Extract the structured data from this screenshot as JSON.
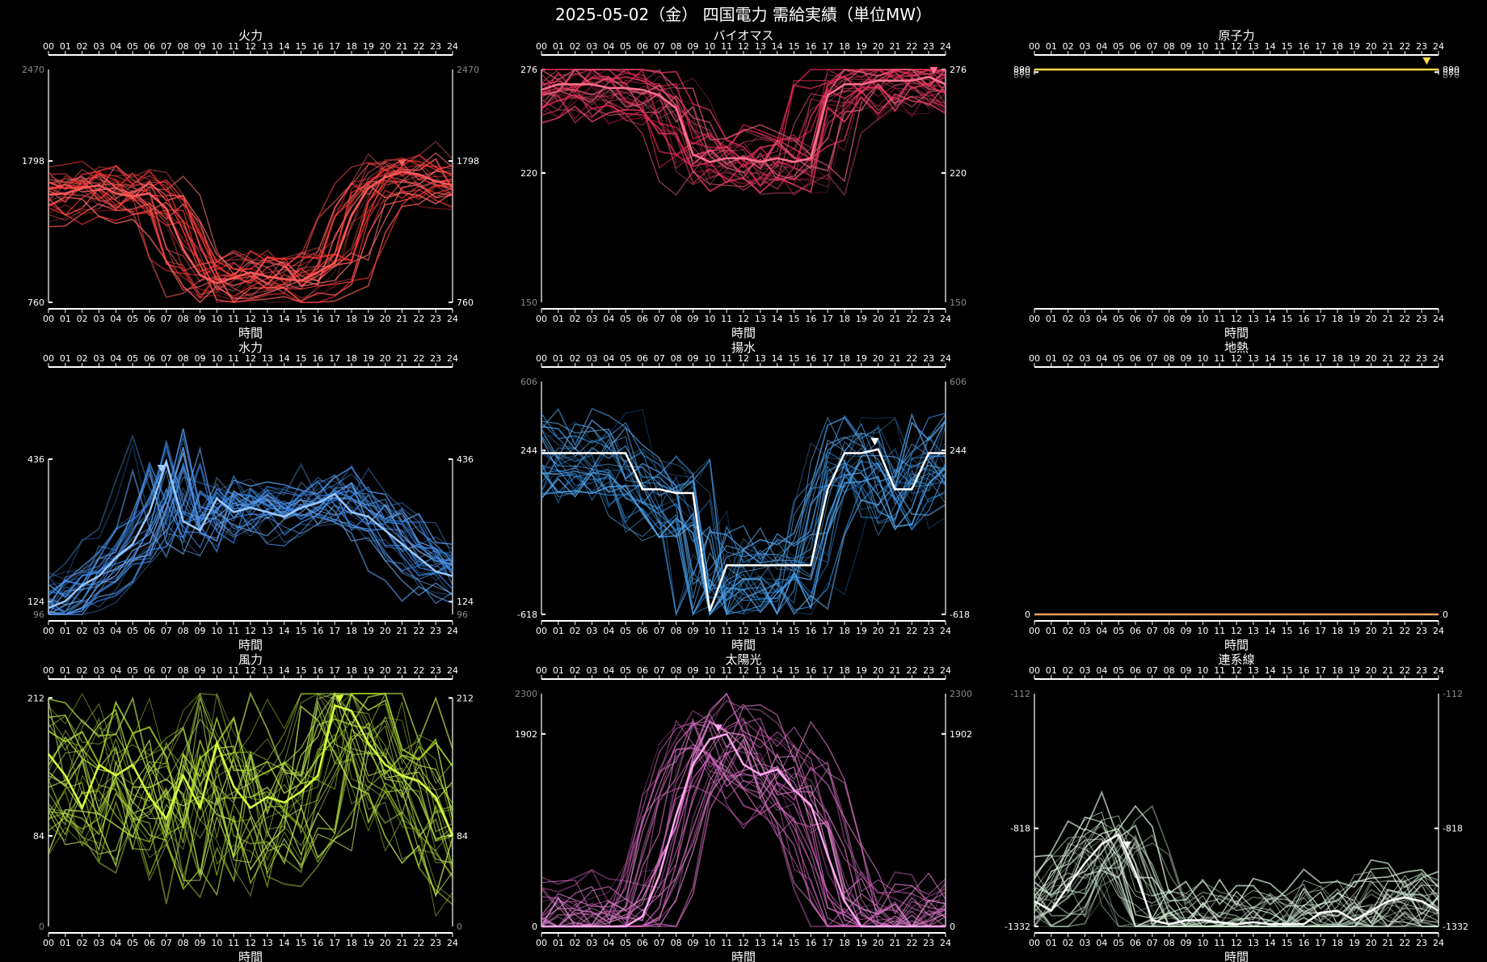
{
  "page": {
    "title": "2025-05-02（金） 四国電力 需給実績（単位MW）",
    "background": "#000000",
    "hours": [
      "00",
      "01",
      "02",
      "03",
      "04",
      "05",
      "06",
      "07",
      "08",
      "09",
      "10",
      "11",
      "12",
      "13",
      "14",
      "15",
      "16",
      "17",
      "18",
      "19",
      "20",
      "21",
      "22",
      "23",
      "24"
    ],
    "xlabel": "時間"
  },
  "chart_data": [
    {
      "type": "line",
      "title": "火力",
      "xlabel": "時間",
      "color": "#ff3030",
      "highlight": "#ff5a5a",
      "ylim": [
        760,
        2470
      ],
      "scale_max": 2470,
      "ticks_major": [
        760,
        1798
      ],
      "tick_minor": 2470,
      "x_hours": [
        0,
        1,
        2,
        3,
        4,
        5,
        6,
        7,
        8,
        9,
        10,
        11,
        12,
        13,
        14,
        15,
        16,
        17,
        18,
        19,
        20,
        21,
        22,
        23,
        24
      ],
      "today": [
        1550,
        1560,
        1600,
        1620,
        1560,
        1540,
        1560,
        1450,
        1150,
        960,
        900,
        940,
        980,
        950,
        930,
        920,
        980,
        1050,
        1400,
        1600,
        1680,
        1720,
        1700,
        1650,
        1620
      ],
      "marker_hour": 21,
      "history_count": 30,
      "history_spread": 0.18,
      "history_seed": 11
    },
    {
      "type": "line",
      "title": "バイオマス",
      "xlabel": "時間",
      "color": "#e8204f",
      "highlight": "#ff7090",
      "ylim": [
        150,
        276
      ],
      "scale_max": 276,
      "ticks_major": [
        220,
        276
      ],
      "tick_minor": 150,
      "x_hours": [
        0,
        1,
        2,
        3,
        4,
        5,
        6,
        7,
        8,
        9,
        10,
        11,
        12,
        13,
        14,
        15,
        16,
        17,
        18,
        19,
        20,
        21,
        22,
        23,
        24
      ],
      "today": [
        265,
        268,
        268,
        268,
        266,
        266,
        265,
        262,
        255,
        230,
        226,
        228,
        228,
        226,
        228,
        226,
        228,
        262,
        268,
        268,
        270,
        270,
        270,
        272,
        268
      ],
      "marker_hour": 23.3,
      "history_count": 30,
      "history_spread": 0.22,
      "history_seed": 23
    },
    {
      "type": "line",
      "title": "原子力",
      "xlabel": "時間",
      "color": "#f0c020",
      "highlight": "#ffd84a",
      "ylim": [
        0,
        890
      ],
      "scale_max": 890,
      "ticks_major": [
        880,
        890
      ],
      "tick_minor": 870,
      "x_hours": [
        0,
        1,
        2,
        3,
        4,
        5,
        6,
        7,
        8,
        9,
        10,
        11,
        12,
        13,
        14,
        15,
        16,
        17,
        18,
        19,
        20,
        21,
        22,
        23,
        24
      ],
      "today": [
        890,
        890,
        890,
        890,
        890,
        890,
        890,
        890,
        890,
        890,
        890,
        890,
        890,
        890,
        890,
        890,
        890,
        890,
        890,
        890,
        890,
        890,
        890,
        890,
        890
      ],
      "marker_hour": 23.3,
      "history_count": 0,
      "history_spread": 0,
      "history_seed": 5
    },
    {
      "type": "line",
      "title": "水力",
      "xlabel": "時間",
      "color": "#2a80e8",
      "highlight": "#9ac8ff",
      "ylim": [
        96,
        606
      ],
      "scale_max": 606,
      "ticks_major": [
        124,
        436
      ],
      "tick_minor": 96,
      "x_hours": [
        0,
        1,
        2,
        3,
        4,
        5,
        6,
        7,
        8,
        9,
        10,
        11,
        12,
        13,
        14,
        15,
        16,
        17,
        18,
        19,
        20,
        21,
        22,
        23,
        24
      ],
      "today": [
        110,
        125,
        160,
        180,
        220,
        250,
        320,
        430,
        300,
        280,
        350,
        320,
        330,
        320,
        310,
        330,
        340,
        360,
        320,
        310,
        280,
        250,
        220,
        190,
        180
      ],
      "marker_hour": 6.7,
      "history_count": 30,
      "history_spread": 0.2,
      "history_seed": 37
    },
    {
      "type": "line",
      "title": "揚水",
      "xlabel": "時間",
      "color": "#1e88e5",
      "highlight": "#ffffff",
      "ylim": [
        -618,
        606
      ],
      "scale_max": 606,
      "ticks_major": [
        -618,
        244
      ],
      "tick_minor": 606,
      "x_hours": [
        0,
        1,
        2,
        3,
        4,
        5,
        6,
        7,
        8,
        9,
        10,
        11,
        12,
        13,
        14,
        15,
        16,
        17,
        18,
        19,
        20,
        21,
        22,
        23,
        24
      ],
      "today": [
        230,
        230,
        230,
        230,
        230,
        230,
        40,
        40,
        20,
        20,
        -600,
        -360,
        -360,
        -360,
        -360,
        -360,
        -360,
        40,
        230,
        230,
        250,
        40,
        40,
        230,
        230
      ],
      "marker_hour": 19.8,
      "history_count": 30,
      "history_spread": 0.3,
      "history_seed": 53
    },
    {
      "type": "line",
      "title": "地熱",
      "xlabel": "時間",
      "color": "#e08040",
      "highlight": "#f0a060",
      "ylim": [
        0,
        1
      ],
      "scale_max": 1,
      "ticks_major": [
        0.0
      ],
      "tick_minor": null,
      "x_hours": [
        0,
        1,
        2,
        3,
        4,
        5,
        6,
        7,
        8,
        9,
        10,
        11,
        12,
        13,
        14,
        15,
        16,
        17,
        18,
        19,
        20,
        21,
        22,
        23,
        24
      ],
      "today": [
        0,
        0,
        0,
        0,
        0,
        0,
        0,
        0,
        0,
        0,
        0,
        0,
        0,
        0,
        0,
        0,
        0,
        0,
        0,
        0,
        0,
        0,
        0,
        0,
        0
      ],
      "marker_hour": null,
      "history_count": 0,
      "history_spread": 0,
      "history_seed": 7
    },
    {
      "type": "line",
      "title": "風力",
      "xlabel": "時間",
      "color": "#a8d820",
      "highlight": "#d8ff40",
      "ylim": [
        0,
        216
      ],
      "scale_max": 216,
      "ticks_major": [
        84,
        212
      ],
      "tick_minor": 0,
      "x_hours": [
        0,
        1,
        2,
        3,
        4,
        5,
        6,
        7,
        8,
        9,
        10,
        11,
        12,
        13,
        14,
        15,
        16,
        17,
        18,
        19,
        20,
        21,
        22,
        23,
        24
      ],
      "today": [
        160,
        140,
        110,
        150,
        140,
        150,
        120,
        100,
        140,
        110,
        170,
        130,
        110,
        120,
        115,
        125,
        140,
        205,
        200,
        170,
        150,
        140,
        135,
        120,
        84
      ],
      "marker_hour": 17.3,
      "history_count": 30,
      "history_spread": 0.55,
      "history_seed": 71
    },
    {
      "type": "line",
      "title": "太陽光",
      "xlabel": "時間",
      "color": "#d050b8",
      "highlight": "#ffa8ee",
      "ylim": [
        0,
        2300
      ],
      "scale_max": 2300,
      "ticks_major": [
        0,
        1902
      ],
      "tick_minor": 2300,
      "x_hours": [
        0,
        1,
        2,
        3,
        4,
        5,
        6,
        7,
        8,
        9,
        10,
        11,
        12,
        13,
        14,
        15,
        16,
        17,
        18,
        19,
        20,
        21,
        22,
        23,
        24
      ],
      "today": [
        0,
        0,
        0,
        0,
        0,
        0,
        100,
        500,
        1100,
        1600,
        1850,
        1900,
        1600,
        1500,
        1550,
        1350,
        1200,
        700,
        250,
        0,
        0,
        0,
        0,
        0,
        0
      ],
      "marker_hour": 10.5,
      "history_count": 30,
      "history_spread": 0.32,
      "history_seed": 89
    },
    {
      "type": "line",
      "title": "連系線",
      "xlabel": "時間",
      "color": "#c8e8cc",
      "highlight": "#ffffff",
      "ylim": [
        -1332,
        -112
      ],
      "scale_max": -112,
      "ticks_major": [
        -1332,
        -818
      ],
      "tick_minor": -112,
      "x_hours": [
        0,
        1,
        2,
        3,
        4,
        5,
        6,
        7,
        8,
        9,
        10,
        11,
        12,
        13,
        14,
        15,
        16,
        17,
        18,
        19,
        20,
        21,
        22,
        23,
        24
      ],
      "today": [
        -1200,
        -1250,
        -1120,
        -1000,
        -900,
        -850,
        -1050,
        -1300,
        -1320,
        -1300,
        -1300,
        -1310,
        -1320,
        -1310,
        -1320,
        -1320,
        -1320,
        -1260,
        -1250,
        -1300,
        -1250,
        -1200,
        -1180,
        -1200,
        -1250
      ],
      "marker_hour": 5.5,
      "history_count": 30,
      "history_spread": 0.25,
      "history_seed": 97
    }
  ]
}
